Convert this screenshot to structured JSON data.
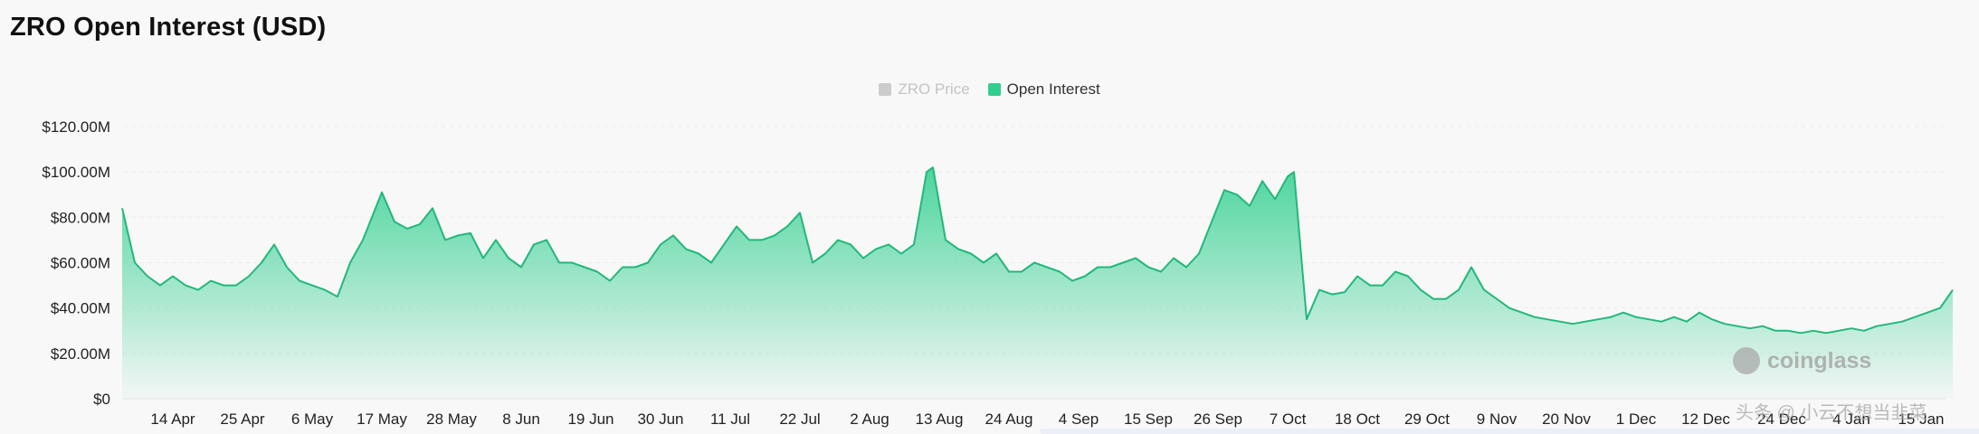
{
  "title": "ZRO Open Interest (USD)",
  "legend": {
    "price_label": "ZRO Price",
    "oi_label": "Open Interest",
    "price_color": "#cccccc",
    "oi_color": "#2fcf8e"
  },
  "watermark": {
    "text": "coinglass"
  },
  "attribution": "头条 @ 小云不想当韭菜",
  "chart_data": {
    "type": "area",
    "title": "ZRO Open Interest (USD)",
    "xlabel": "",
    "ylabel": "",
    "ylim": [
      0,
      120
    ],
    "y_unit": "M USD",
    "y_ticks": [
      "$0",
      "$20.00M",
      "$40.00M",
      "$60.00M",
      "$80.00M",
      "$100.00M",
      "$120.00M"
    ],
    "x_ticks": [
      "14 Apr",
      "25 Apr",
      "6 May",
      "17 May",
      "28 May",
      "8 Jun",
      "19 Jun",
      "30 Jun",
      "11 Jul",
      "22 Jul",
      "2 Aug",
      "13 Aug",
      "24 Aug",
      "4 Sep",
      "15 Sep",
      "26 Sep",
      "7 Oct",
      "18 Oct",
      "29 Oct",
      "9 Nov",
      "20 Nov",
      "1 Dec",
      "12 Dec",
      "24 Dec",
      "4 Jan",
      "15 Jan"
    ],
    "grid": true,
    "legend_position": "top-center",
    "series": [
      {
        "name": "Open Interest",
        "color": "#2fcf8e",
        "points": [
          [
            "6 Apr",
            84
          ],
          [
            "8 Apr",
            60
          ],
          [
            "10 Apr",
            54
          ],
          [
            "12 Apr",
            50
          ],
          [
            "14 Apr",
            54
          ],
          [
            "16 Apr",
            50
          ],
          [
            "18 Apr",
            48
          ],
          [
            "20 Apr",
            52
          ],
          [
            "22 Apr",
            50
          ],
          [
            "24 Apr",
            50
          ],
          [
            "26 Apr",
            54
          ],
          [
            "28 Apr",
            60
          ],
          [
            "30 Apr",
            68
          ],
          [
            "2 May",
            58
          ],
          [
            "4 May",
            52
          ],
          [
            "6 May",
            50
          ],
          [
            "8 May",
            48
          ],
          [
            "10 May",
            45
          ],
          [
            "12 May",
            60
          ],
          [
            "14 May",
            70
          ],
          [
            "16 May",
            84
          ],
          [
            "17 May",
            91
          ],
          [
            "19 May",
            78
          ],
          [
            "21 May",
            75
          ],
          [
            "23 May",
            77
          ],
          [
            "25 May",
            84
          ],
          [
            "27 May",
            70
          ],
          [
            "29 May",
            72
          ],
          [
            "31 May",
            73
          ],
          [
            "2 Jun",
            62
          ],
          [
            "4 Jun",
            70
          ],
          [
            "6 Jun",
            62
          ],
          [
            "8 Jun",
            58
          ],
          [
            "10 Jun",
            68
          ],
          [
            "12 Jun",
            70
          ],
          [
            "14 Jun",
            60
          ],
          [
            "16 Jun",
            60
          ],
          [
            "18 Jun",
            58
          ],
          [
            "20 Jun",
            56
          ],
          [
            "22 Jun",
            52
          ],
          [
            "24 Jun",
            58
          ],
          [
            "26 Jun",
            58
          ],
          [
            "28 Jun",
            60
          ],
          [
            "30 Jun",
            68
          ],
          [
            "2 Jul",
            72
          ],
          [
            "4 Jul",
            66
          ],
          [
            "6 Jul",
            64
          ],
          [
            "8 Jul",
            60
          ],
          [
            "10 Jul",
            68
          ],
          [
            "12 Jul",
            76
          ],
          [
            "14 Jul",
            70
          ],
          [
            "16 Jul",
            70
          ],
          [
            "18 Jul",
            72
          ],
          [
            "20 Jul",
            76
          ],
          [
            "22 Jul",
            82
          ],
          [
            "24 Jul",
            60
          ],
          [
            "26 Jul",
            64
          ],
          [
            "28 Jul",
            70
          ],
          [
            "30 Jul",
            68
          ],
          [
            "1 Aug",
            62
          ],
          [
            "3 Aug",
            66
          ],
          [
            "5 Aug",
            68
          ],
          [
            "7 Aug",
            64
          ],
          [
            "9 Aug",
            68
          ],
          [
            "11 Aug",
            100
          ],
          [
            "12 Aug",
            102
          ],
          [
            "14 Aug",
            70
          ],
          [
            "16 Aug",
            66
          ],
          [
            "18 Aug",
            64
          ],
          [
            "20 Aug",
            60
          ],
          [
            "22 Aug",
            64
          ],
          [
            "24 Aug",
            56
          ],
          [
            "26 Aug",
            56
          ],
          [
            "28 Aug",
            60
          ],
          [
            "30 Aug",
            58
          ],
          [
            "1 Sep",
            56
          ],
          [
            "3 Sep",
            52
          ],
          [
            "5 Sep",
            54
          ],
          [
            "7 Sep",
            58
          ],
          [
            "9 Sep",
            58
          ],
          [
            "11 Sep",
            60
          ],
          [
            "13 Sep",
            62
          ],
          [
            "15 Sep",
            58
          ],
          [
            "17 Sep",
            56
          ],
          [
            "19 Sep",
            62
          ],
          [
            "21 Sep",
            58
          ],
          [
            "23 Sep",
            64
          ],
          [
            "25 Sep",
            78
          ],
          [
            "27 Sep",
            92
          ],
          [
            "29 Sep",
            90
          ],
          [
            "1 Oct",
            85
          ],
          [
            "3 Oct",
            96
          ],
          [
            "5 Oct",
            88
          ],
          [
            "7 Oct",
            98
          ],
          [
            "8 Oct",
            100
          ],
          [
            "10 Oct",
            35
          ],
          [
            "12 Oct",
            48
          ],
          [
            "14 Oct",
            46
          ],
          [
            "16 Oct",
            47
          ],
          [
            "18 Oct",
            54
          ],
          [
            "20 Oct",
            50
          ],
          [
            "22 Oct",
            50
          ],
          [
            "24 Oct",
            56
          ],
          [
            "26 Oct",
            54
          ],
          [
            "28 Oct",
            48
          ],
          [
            "30 Oct",
            44
          ],
          [
            "1 Nov",
            44
          ],
          [
            "3 Nov",
            48
          ],
          [
            "5 Nov",
            58
          ],
          [
            "7 Nov",
            48
          ],
          [
            "9 Nov",
            44
          ],
          [
            "11 Nov",
            40
          ],
          [
            "13 Nov",
            38
          ],
          [
            "15 Nov",
            36
          ],
          [
            "17 Nov",
            35
          ],
          [
            "19 Nov",
            34
          ],
          [
            "21 Nov",
            33
          ],
          [
            "23 Nov",
            34
          ],
          [
            "25 Nov",
            35
          ],
          [
            "27 Nov",
            36
          ],
          [
            "29 Nov",
            38
          ],
          [
            "1 Dec",
            36
          ],
          [
            "3 Dec",
            35
          ],
          [
            "5 Dec",
            34
          ],
          [
            "7 Dec",
            36
          ],
          [
            "9 Dec",
            34
          ],
          [
            "11 Dec",
            38
          ],
          [
            "13 Dec",
            35
          ],
          [
            "15 Dec",
            33
          ],
          [
            "17 Dec",
            32
          ],
          [
            "19 Dec",
            31
          ],
          [
            "21 Dec",
            32
          ],
          [
            "23 Dec",
            30
          ],
          [
            "25 Dec",
            30
          ],
          [
            "27 Dec",
            29
          ],
          [
            "29 Dec",
            30
          ],
          [
            "31 Dec",
            29
          ],
          [
            "2 Jan",
            30
          ],
          [
            "4 Jan",
            31
          ],
          [
            "6 Jan",
            30
          ],
          [
            "8 Jan",
            32
          ],
          [
            "10 Jan",
            33
          ],
          [
            "12 Jan",
            34
          ],
          [
            "14 Jan",
            36
          ],
          [
            "16 Jan",
            38
          ],
          [
            "18 Jan",
            40
          ],
          [
            "20 Jan",
            48
          ]
        ]
      },
      {
        "name": "ZRO Price",
        "color": "#cccccc",
        "hidden": true,
        "points": []
      }
    ]
  }
}
